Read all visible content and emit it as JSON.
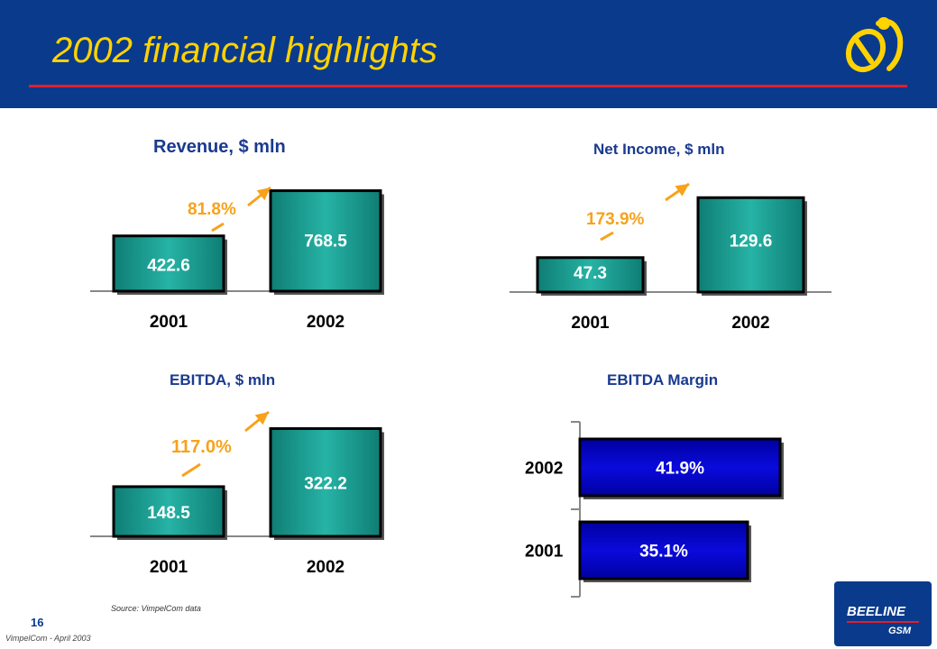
{
  "page": {
    "title": "2002 financial highlights",
    "source": "Source: VimpelCom data",
    "page_number": "16",
    "company_date": "VimpelCom - April 2003",
    "brand_logo_text": [
      "BEELINE",
      "GSM"
    ]
  },
  "colors": {
    "header_bg": "#0a3a8c",
    "title_color": "#ffd200",
    "title_rule": "#e0202a",
    "bar_teal": "#26b3a5",
    "bar_blue": "#0a0adc",
    "growth_arrow": "#f7a21b",
    "chart_title": "#1a3a8f"
  },
  "chart_data": [
    {
      "id": "revenue",
      "type": "bar",
      "title": "Revenue, $ mln",
      "categories": [
        "2001",
        "2002"
      ],
      "values": [
        422.6,
        768.5
      ],
      "value_labels": [
        "422.6",
        "768.5"
      ],
      "growth_label": "81.8%"
    },
    {
      "id": "net_income",
      "type": "bar",
      "title": "Net Income, $ mln",
      "categories": [
        "2001",
        "2002"
      ],
      "values": [
        47.3,
        129.6
      ],
      "value_labels": [
        "47.3",
        "129.6"
      ],
      "growth_label": "173.9%"
    },
    {
      "id": "ebitda",
      "type": "bar",
      "title": "EBITDA, $ mln",
      "categories": [
        "2001",
        "2002"
      ],
      "values": [
        148.5,
        322.2
      ],
      "value_labels": [
        "148.5",
        "322.2"
      ],
      "growth_label": "117.0%"
    },
    {
      "id": "ebitda_margin",
      "type": "bar",
      "orientation": "horizontal",
      "title": "EBITDA Margin",
      "categories": [
        "2002",
        "2001"
      ],
      "values": [
        41.9,
        35.1
      ],
      "value_labels": [
        "41.9%",
        "35.1%"
      ]
    }
  ]
}
